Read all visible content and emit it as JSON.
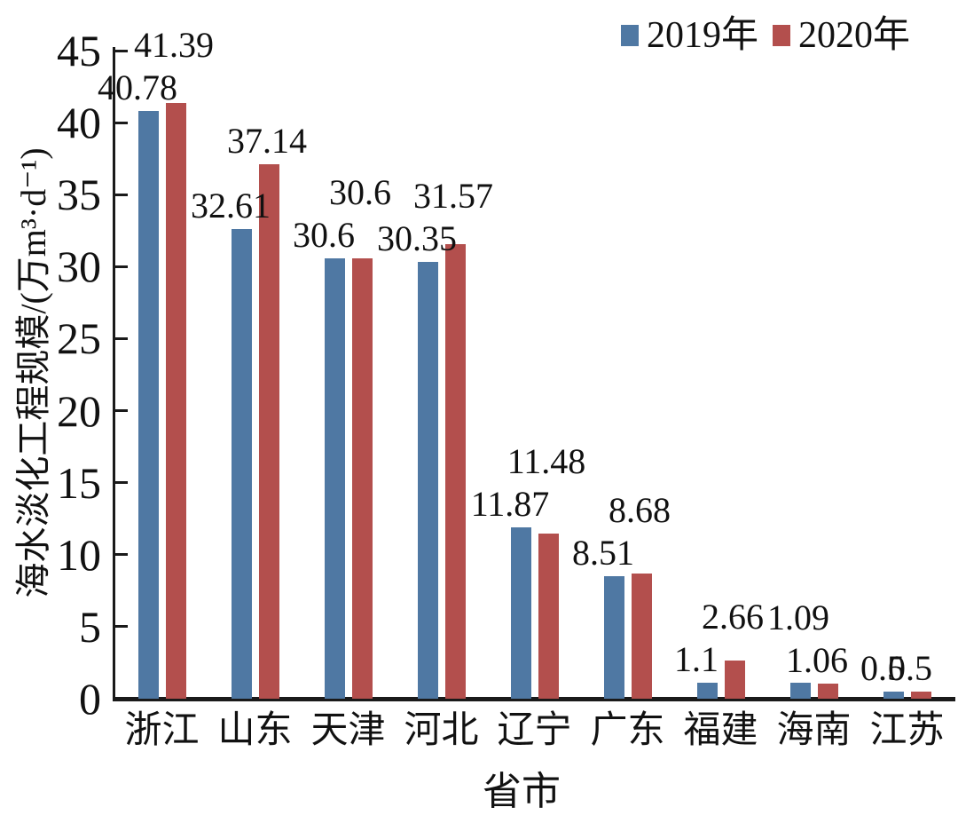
{
  "chart_data": {
    "type": "bar",
    "title": "",
    "categories": [
      "浙江",
      "山东",
      "天津",
      "河北",
      "辽宁",
      "广东",
      "福建",
      "海南",
      "江苏"
    ],
    "series": [
      {
        "name": "2019年",
        "color": "#4F78A3",
        "values": [
          40.78,
          32.61,
          30.6,
          30.35,
          11.87,
          8.51,
          1.1,
          1.09,
          0.5
        ],
        "labels": [
          "40.78",
          "32.61",
          "30.6",
          "30.35",
          "11.87",
          "8.51",
          "1.1",
          "1.09",
          "0.5"
        ]
      },
      {
        "name": "2020年",
        "color": "#B34F4D",
        "values": [
          41.39,
          37.14,
          30.6,
          31.57,
          11.48,
          8.68,
          2.66,
          1.06,
          0.5
        ],
        "labels": [
          "41.39",
          "37.14",
          "30.6",
          "31.57",
          "11.48",
          "8.68",
          "2.66",
          "1.06",
          "0.5"
        ]
      }
    ],
    "xlabel": "省市",
    "ylabel": "海水淡化工程规模/(万m³·d⁻¹)",
    "ylim": [
      0,
      45
    ],
    "yticks": [
      0,
      5,
      10,
      15,
      20,
      25,
      30,
      35,
      40,
      45
    ],
    "grid": false,
    "legend_position": "top-right",
    "label_layout": [
      [
        "low",
        "high"
      ],
      [
        "low",
        "high"
      ],
      [
        "low",
        "high"
      ],
      [
        "low",
        "high"
      ],
      [
        "low",
        "high"
      ],
      [
        "low",
        "high"
      ],
      [
        "low",
        "high"
      ],
      [
        "high",
        "low"
      ],
      [
        "low",
        "low"
      ]
    ]
  }
}
